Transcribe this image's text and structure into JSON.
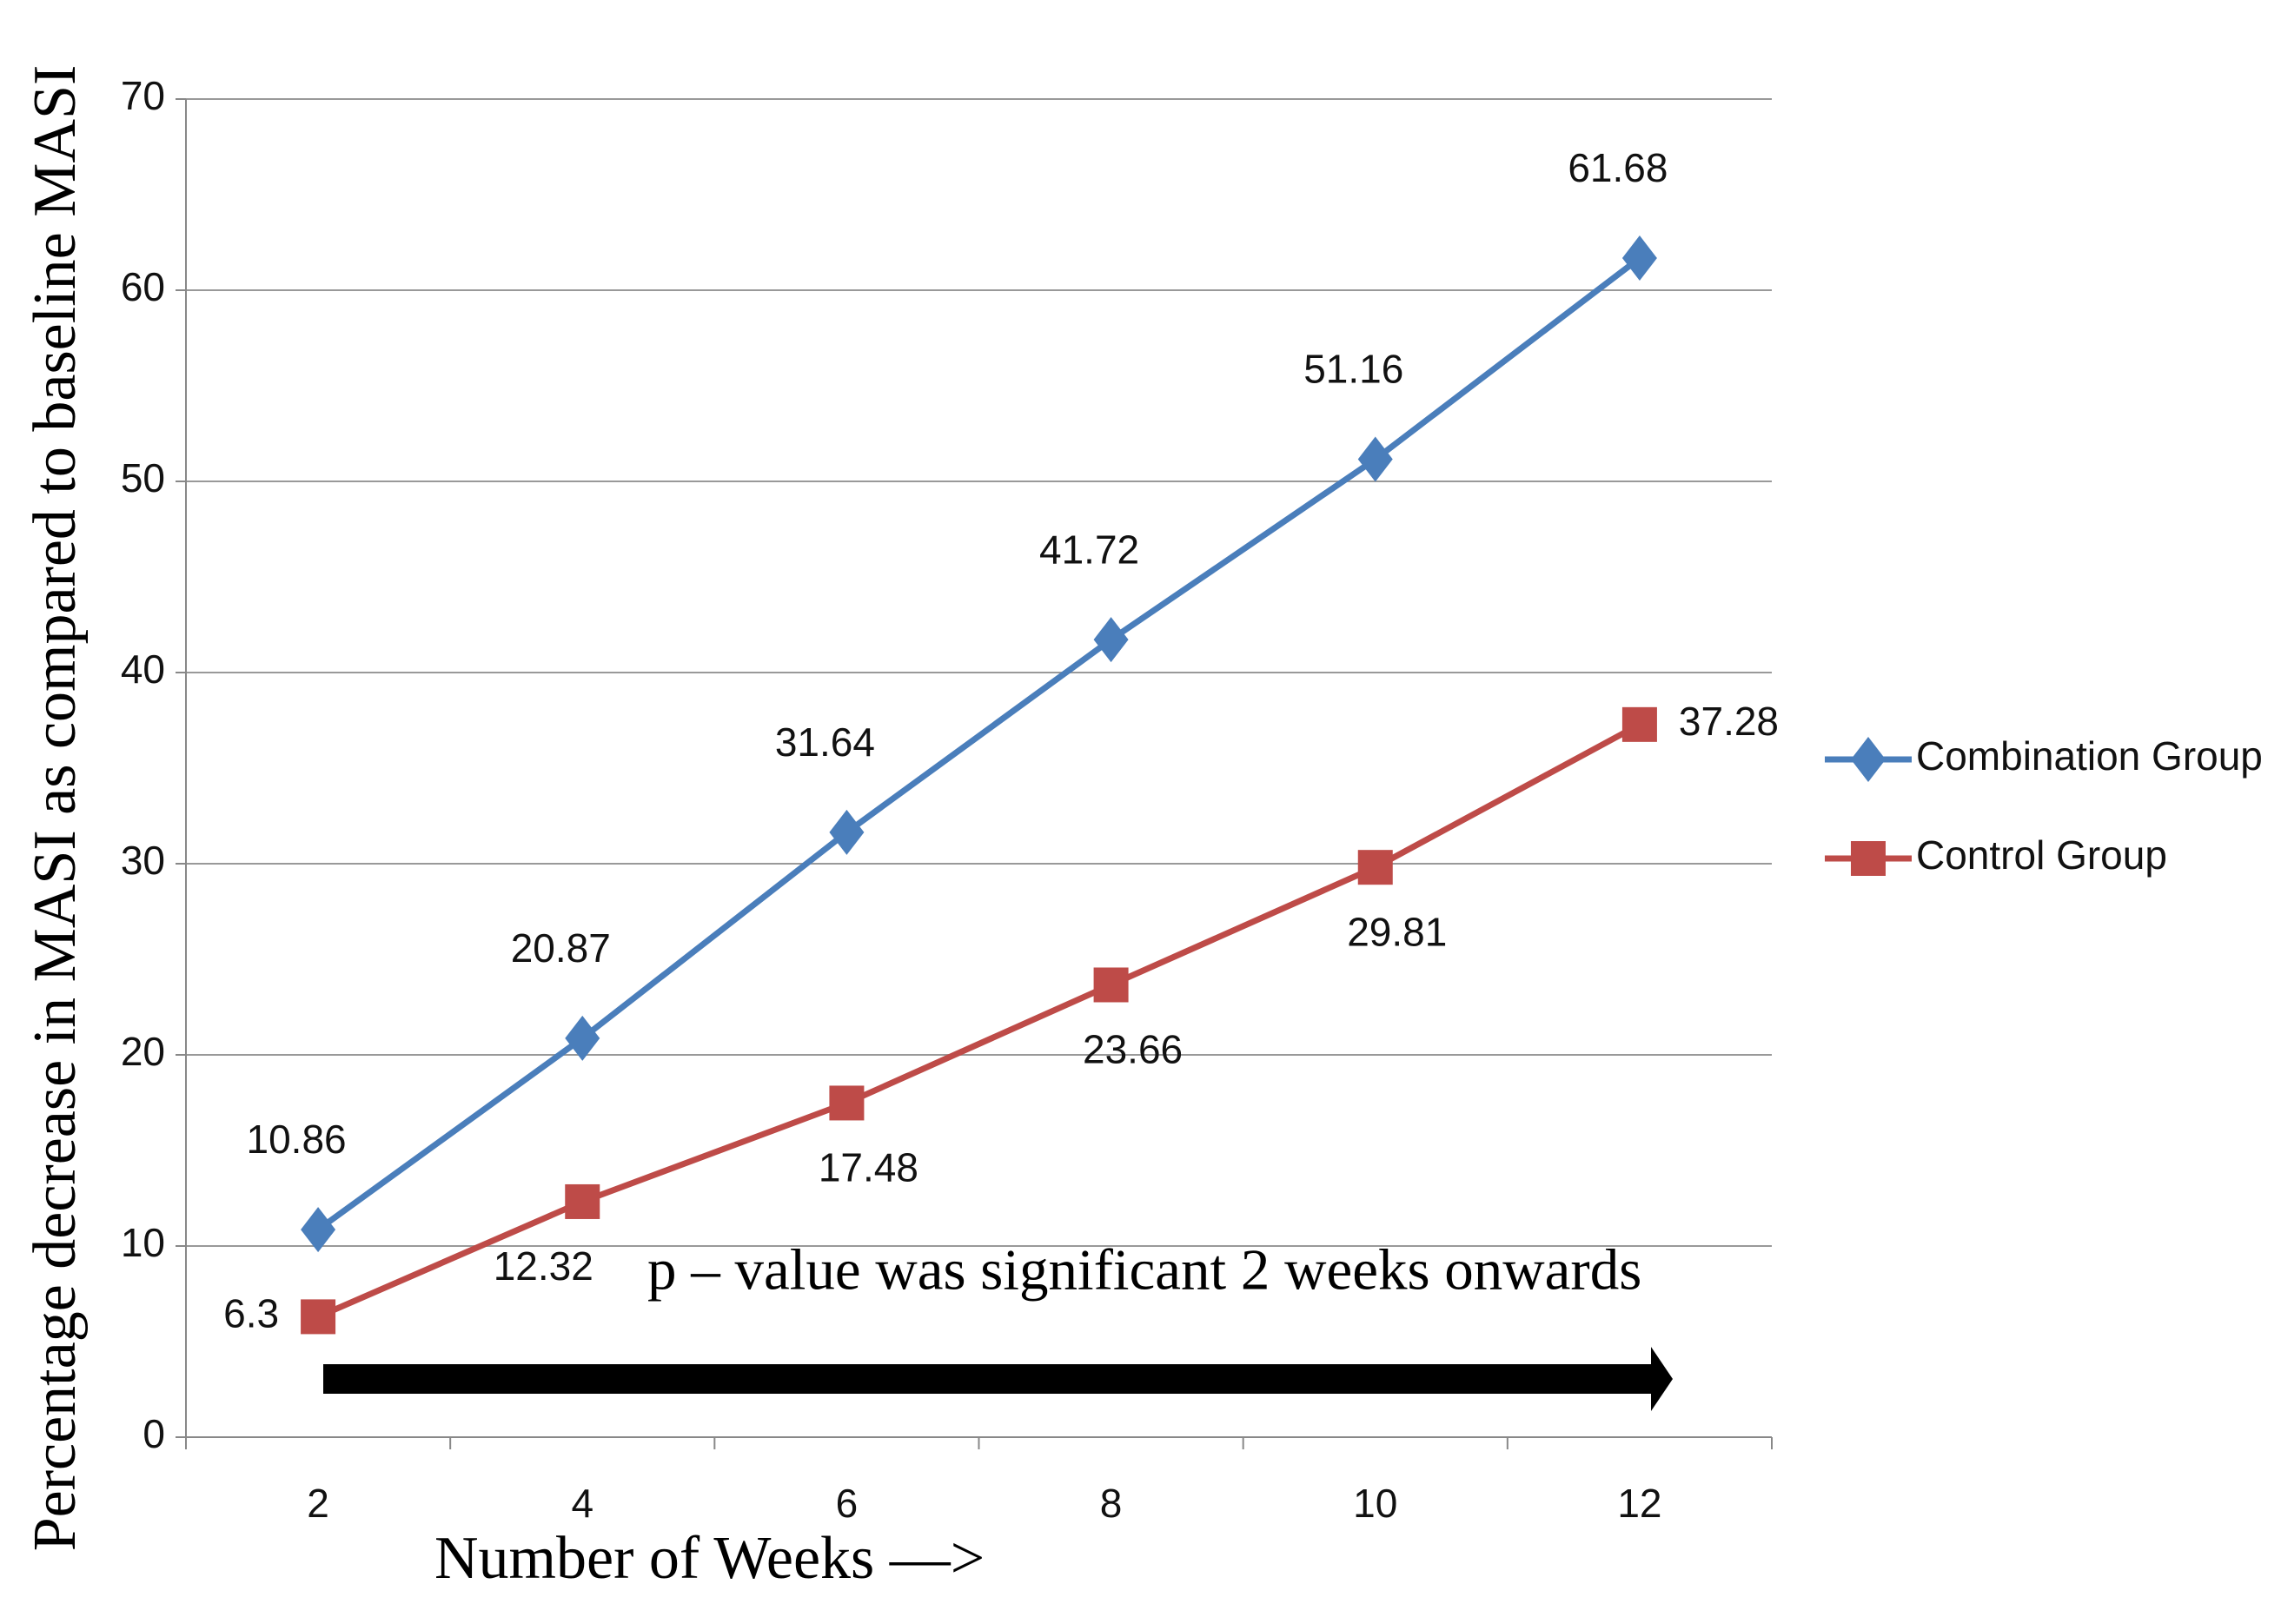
{
  "chart_data": {
    "type": "line",
    "x_label": "Number of Weeks —>",
    "y_label": "Percentage  decrease in MASI as compared to baseline MASI",
    "annotation": "p – value was significant 2 weeks onwards",
    "categories": [
      "2",
      "4",
      "6",
      "8",
      "10",
      "12"
    ],
    "series": [
      {
        "name": "Combination Group",
        "color": "#4a7ebb",
        "marker": "diamond",
        "values": [
          10.86,
          20.87,
          31.64,
          41.72,
          51.16,
          61.68
        ]
      },
      {
        "name": "Control Group",
        "color": "#be4b48",
        "marker": "square",
        "values": [
          6.3,
          12.32,
          17.48,
          23.66,
          29.81,
          37.28
        ]
      }
    ],
    "ylim": [
      0,
      70
    ],
    "yticks": [
      0,
      10,
      20,
      30,
      40,
      50,
      60,
      70
    ],
    "grid": true,
    "legend": "right"
  }
}
